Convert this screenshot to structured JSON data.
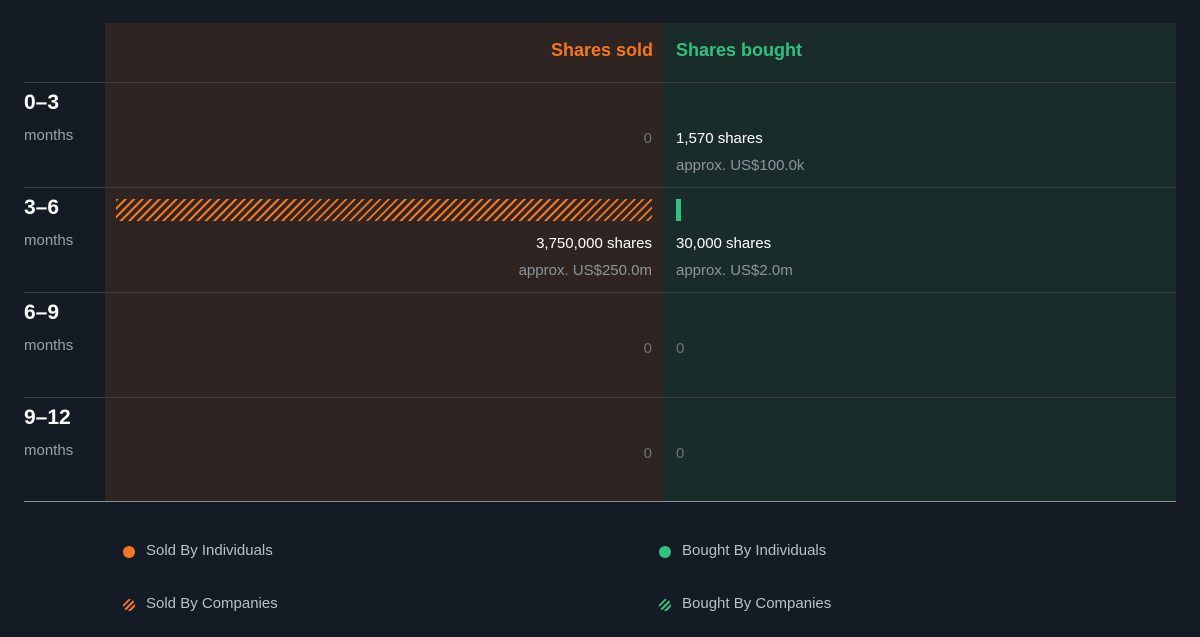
{
  "colors": {
    "sold": "#f4761f",
    "bought": "#2ec27e",
    "sold_panel": "#2e2421",
    "bought_panel": "#192c2a",
    "background": "#151b24"
  },
  "chart_data": {
    "type": "bar",
    "headers": {
      "sold": "Shares sold",
      "bought": "Shares bought"
    },
    "categories": [
      "0–3",
      "3–6",
      "6–9",
      "9–12"
    ],
    "unit_label": "months",
    "rows": [
      {
        "period": "0–3",
        "unit": "months",
        "sold_shares": 0,
        "sold_label": "0",
        "sold_value": "",
        "bought_shares": 1570,
        "bought_label": "1,570 shares",
        "bought_value": "approx. US$100.0k"
      },
      {
        "period": "3–6",
        "unit": "months",
        "sold_shares": 3750000,
        "sold_label": "3,750,000 shares",
        "sold_value": "approx. US$250.0m",
        "bought_shares": 30000,
        "bought_label": "30,000 shares",
        "bought_value": "approx. US$2.0m"
      },
      {
        "period": "6–9",
        "unit": "months",
        "sold_shares": 0,
        "sold_label": "0",
        "sold_value": "",
        "bought_shares": 0,
        "bought_label": "0",
        "bought_value": ""
      },
      {
        "period": "9–12",
        "unit": "months",
        "sold_shares": 0,
        "sold_label": "0",
        "sold_value": "",
        "bought_shares": 0,
        "bought_label": "0",
        "bought_value": ""
      }
    ],
    "series": [
      {
        "name": "Sold By Individuals",
        "values": [
          0,
          0,
          0,
          0
        ]
      },
      {
        "name": "Sold By Companies",
        "values": [
          0,
          3750000,
          0,
          0
        ]
      },
      {
        "name": "Bought By Individuals",
        "values": [
          0,
          0,
          0,
          0
        ]
      },
      {
        "name": "Bought By Companies",
        "values": [
          1570,
          30000,
          0,
          0
        ]
      }
    ],
    "legend": [
      {
        "label": "Sold By Individuals",
        "style": "dot",
        "color": "#f4761f"
      },
      {
        "label": "Sold By Companies",
        "style": "hatch",
        "color": "#f4761f"
      },
      {
        "label": "Bought By Individuals",
        "style": "dot",
        "color": "#2ec27e"
      },
      {
        "label": "Bought By Companies",
        "style": "hatch",
        "color": "#2ec27e"
      }
    ],
    "legend_position": "bottom"
  }
}
